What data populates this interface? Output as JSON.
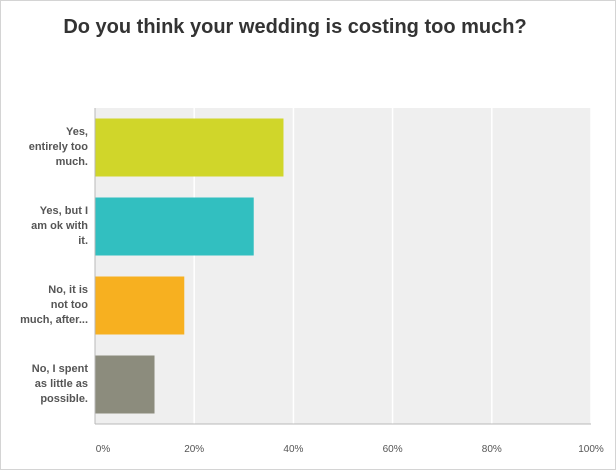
{
  "chart_data": {
    "type": "bar",
    "orientation": "horizontal",
    "title": "Do you think your wedding is costing too much?",
    "categories": [
      "Yes, entirely too much.",
      "Yes, but I am ok with it.",
      "No, it is not too much, after...",
      "No, I spent as little as possible."
    ],
    "category_label_lines": [
      [
        "Yes,",
        "entirely too",
        "much."
      ],
      [
        "Yes, but I",
        "am ok with",
        "it."
      ],
      [
        "No, it is",
        "not too",
        "much, after..."
      ],
      [
        "No, I spent",
        "as little as",
        "possible."
      ]
    ],
    "values": [
      38,
      32,
      18,
      12
    ],
    "colors": [
      "#d0d62a",
      "#32bfc0",
      "#f7b020",
      "#8c8c7d"
    ],
    "xlim": [
      0,
      100
    ],
    "xticks": [
      "0%",
      "20%",
      "40%",
      "60%",
      "80%",
      "100%"
    ],
    "grid": true,
    "plot_background": "#efefef",
    "xlabel": "",
    "ylabel": ""
  }
}
